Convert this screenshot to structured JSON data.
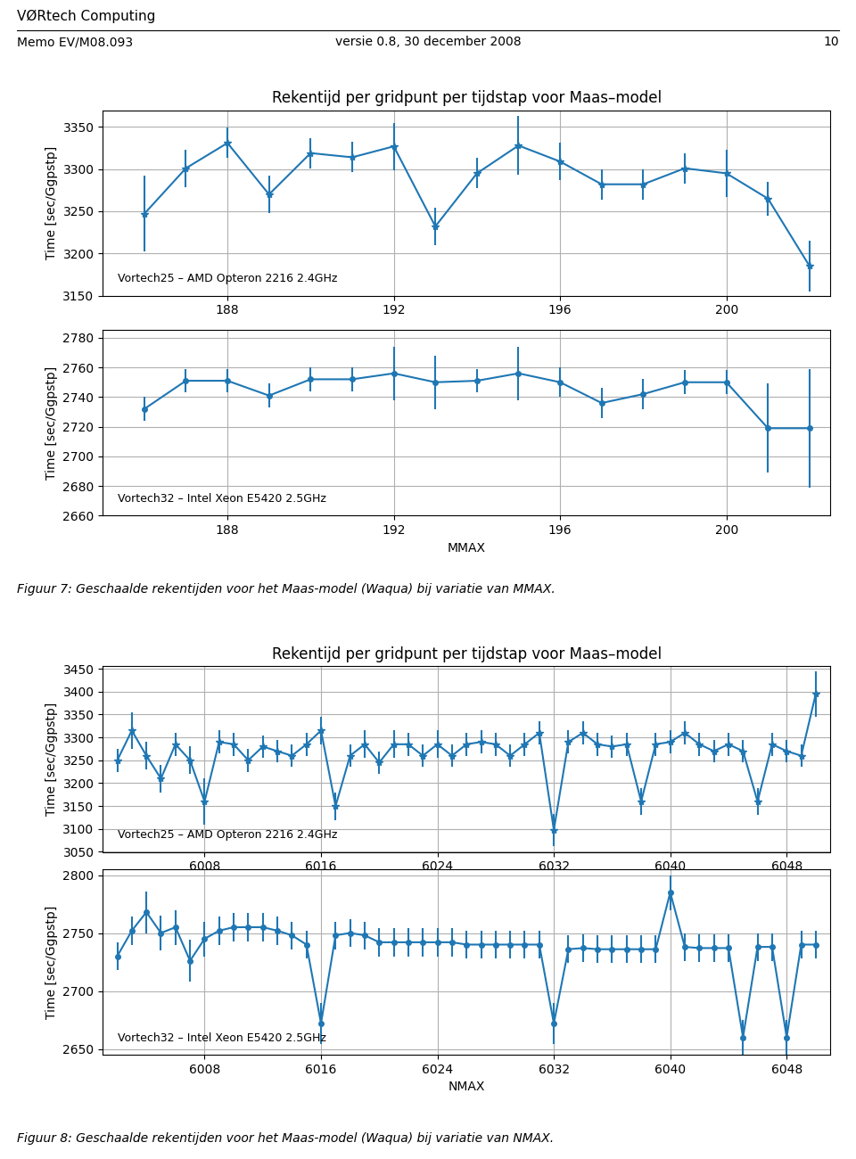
{
  "title": "VØRtech Computing",
  "annotations": [
    "Memo EV/M08.093",
    "versie 0.8, 30 december 2008",
    "10"
  ],
  "chart_data": [
    {
      "type": "line",
      "title": "Rekentijd per gridpunt per tijdstap voor Maas–model",
      "ylabel": "Time [sec/Ggpstp]",
      "x": [
        186,
        187,
        188,
        189,
        190,
        191,
        192,
        193,
        194,
        195,
        196,
        197,
        198,
        199,
        200,
        201,
        202
      ],
      "values": [
        3247,
        3301,
        3331,
        3270,
        3319,
        3314,
        3327,
        3232,
        3295,
        3328,
        3309,
        3282,
        3282,
        3301,
        3295,
        3265,
        3185
      ],
      "yerr": [
        45,
        22,
        18,
        22,
        18,
        18,
        28,
        22,
        18,
        35,
        22,
        18,
        18,
        18,
        28,
        20,
        30
      ],
      "xlim": [
        185.0,
        202.5
      ],
      "xticks": [
        188,
        192,
        196,
        200
      ],
      "ylim": [
        3150,
        3370
      ],
      "yticks": [
        3150,
        3200,
        3250,
        3300,
        3350
      ],
      "grid": true,
      "marker": "star",
      "line_style": "solid",
      "annotations": [
        "Vortech25 – AMD Opteron 2216 2.4GHz"
      ]
    },
    {
      "type": "line",
      "xlabel": "MMAX",
      "ylabel": "Time [sec/Ggpstp]",
      "x": [
        186,
        187,
        188,
        189,
        190,
        191,
        192,
        193,
        194,
        195,
        196,
        197,
        198,
        199,
        200,
        201,
        202
      ],
      "values": [
        2732,
        2751,
        2751,
        2741,
        2752,
        2752,
        2756,
        2750,
        2751,
        2756,
        2750,
        2736,
        2742,
        2750,
        2750,
        2719,
        2719
      ],
      "yerr": [
        8,
        8,
        8,
        8,
        8,
        8,
        18,
        18,
        8,
        18,
        10,
        10,
        10,
        8,
        8,
        30,
        40
      ],
      "xlim": [
        185.0,
        202.5
      ],
      "xticks": [
        188,
        192,
        196,
        200
      ],
      "ylim": [
        2660,
        2785
      ],
      "yticks": [
        2660,
        2680,
        2700,
        2720,
        2740,
        2760,
        2780
      ],
      "grid": true,
      "marker": "circle",
      "line_style": "solid",
      "annotations": [
        "Vortech32 – Intel Xeon E5420 2.5GHz",
        "Figuur 7: Geschaalde rekentijden voor het Maas-model (Waqua) bij variatie van MMAX."
      ]
    },
    {
      "type": "line",
      "title": "Rekentijd per gridpunt per tijdstap voor Maas–model",
      "ylabel": "Time [sec/Ggpstp]",
      "x": [
        6002,
        6003,
        6004,
        6005,
        6006,
        6007,
        6008,
        6009,
        6010,
        6011,
        6012,
        6013,
        6014,
        6015,
        6016,
        6017,
        6018,
        6019,
        6020,
        6021,
        6022,
        6023,
        6024,
        6025,
        6026,
        6027,
        6028,
        6029,
        6030,
        6031,
        6032,
        6033,
        6034,
        6035,
        6036,
        6037,
        6038,
        6039,
        6040,
        6041,
        6042,
        6043,
        6044,
        6045,
        6046,
        6047,
        6048,
        6049,
        6050
      ],
      "values": [
        3250,
        3315,
        3260,
        3210,
        3285,
        3250,
        3160,
        3290,
        3285,
        3250,
        3280,
        3270,
        3260,
        3285,
        3315,
        3150,
        3260,
        3285,
        3245,
        3285,
        3285,
        3260,
        3285,
        3260,
        3285,
        3290,
        3285,
        3260,
        3285,
        3310,
        3098,
        3290,
        3310,
        3285,
        3280,
        3285,
        3160,
        3285,
        3290,
        3310,
        3285,
        3270,
        3285,
        3270,
        3160,
        3285,
        3270,
        3260,
        3395
      ],
      "yerr": [
        25,
        40,
        30,
        30,
        25,
        30,
        50,
        25,
        25,
        25,
        25,
        25,
        25,
        25,
        30,
        30,
        25,
        30,
        25,
        30,
        25,
        25,
        30,
        25,
        25,
        25,
        25,
        25,
        25,
        25,
        35,
        25,
        25,
        25,
        25,
        25,
        30,
        25,
        25,
        25,
        25,
        25,
        25,
        25,
        30,
        25,
        25,
        25,
        50
      ],
      "xlim": [
        6001,
        6051
      ],
      "xticks": [
        6008,
        6016,
        6024,
        6032,
        6040,
        6048
      ],
      "ylim": [
        3050,
        3455
      ],
      "yticks": [
        3050,
        3100,
        3150,
        3200,
        3250,
        3300,
        3350,
        3400,
        3450
      ],
      "grid": true,
      "marker": "star",
      "line_style": "solid",
      "annotations": [
        "Vortech25 – AMD Opteron 2216 2.4GHz"
      ]
    },
    {
      "type": "line",
      "xlabel": "NMAX",
      "ylabel": "Time [sec/Ggpstp]",
      "x": [
        6002,
        6003,
        6004,
        6005,
        6006,
        6007,
        6008,
        6009,
        6010,
        6011,
        6012,
        6013,
        6014,
        6015,
        6016,
        6017,
        6018,
        6019,
        6020,
        6021,
        6022,
        6023,
        6024,
        6025,
        6026,
        6027,
        6028,
        6029,
        6030,
        6031,
        6032,
        6033,
        6034,
        6035,
        6036,
        6037,
        6038,
        6039,
        6040,
        6041,
        6042,
        6043,
        6044,
        6045,
        6046,
        6047,
        6048,
        6049,
        6050
      ],
      "values": [
        2730,
        2752,
        2768,
        2750,
        2755,
        2726,
        2745,
        2752,
        2755,
        2755,
        2755,
        2752,
        2748,
        2740,
        2672,
        2748,
        2750,
        2748,
        2742,
        2742,
        2742,
        2742,
        2742,
        2742,
        2740,
        2740,
        2740,
        2740,
        2740,
        2740,
        2672,
        2736,
        2737,
        2736,
        2736,
        2736,
        2736,
        2736,
        2785,
        2738,
        2737,
        2737,
        2737,
        2660,
        2738,
        2738,
        2660,
        2740,
        2740
      ],
      "yerr": [
        12,
        12,
        18,
        15,
        15,
        18,
        15,
        12,
        12,
        12,
        12,
        12,
        12,
        12,
        18,
        12,
        12,
        12,
        12,
        12,
        12,
        12,
        12,
        12,
        12,
        12,
        12,
        12,
        12,
        12,
        18,
        12,
        12,
        12,
        12,
        12,
        12,
        12,
        15,
        12,
        12,
        12,
        12,
        15,
        12,
        12,
        15,
        12,
        12
      ],
      "xlim": [
        6001,
        6051
      ],
      "xticks": [
        6008,
        6016,
        6024,
        6032,
        6040,
        6048
      ],
      "ylim": [
        2645,
        2805
      ],
      "yticks": [
        2650,
        2700,
        2750,
        2800
      ],
      "grid": true,
      "marker": "circle",
      "line_style": "solid",
      "annotations": [
        "Vortech32 – Intel Xeon E5420 2.5GHz",
        "Figuur 8: Geschaalde rekentijden voor het Maas-model (Waqua) bij variatie van NMAX."
      ]
    }
  ]
}
